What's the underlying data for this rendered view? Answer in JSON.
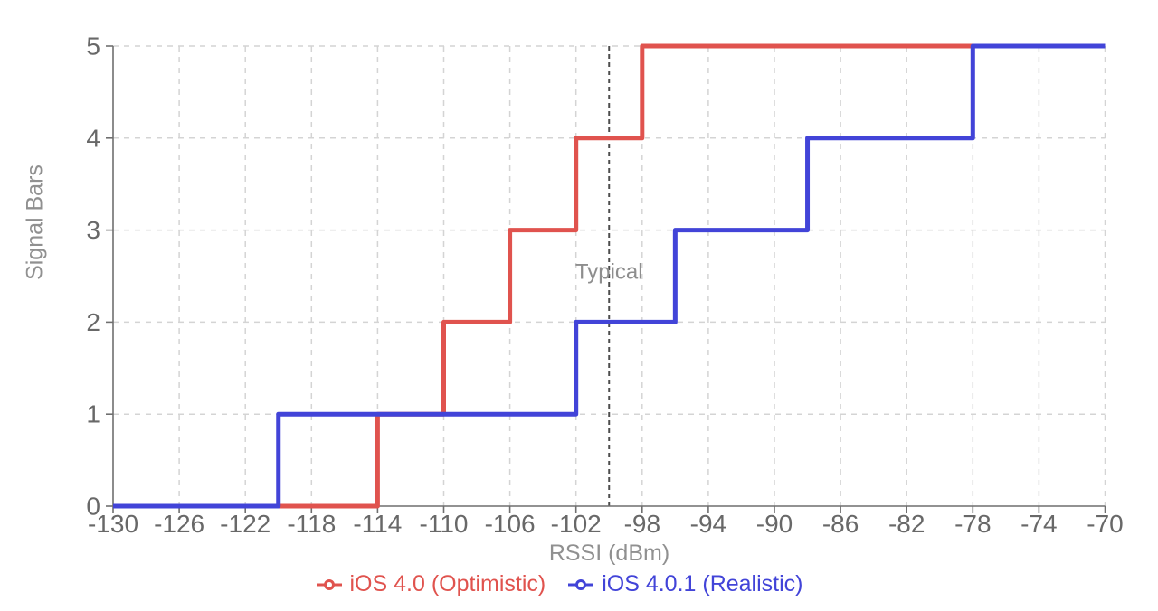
{
  "chart_data": {
    "type": "line",
    "step_mode": "step-after",
    "xlabel": "RSSI (dBm)",
    "ylabel": "Signal Bars",
    "xlim": [
      -130,
      -70
    ],
    "ylim": [
      0,
      5
    ],
    "x_ticks": [
      -130,
      -126,
      -122,
      -118,
      -114,
      -110,
      -106,
      -102,
      -98,
      -94,
      -90,
      -86,
      -82,
      -78,
      -74,
      -70
    ],
    "y_ticks": [
      0,
      1,
      2,
      3,
      4,
      5
    ],
    "grid": true,
    "grid_style": "dashed",
    "legend_position": "bottom",
    "annotation": {
      "label": "Typical",
      "x": -100,
      "label_y": 2.5
    },
    "series": [
      {
        "name": "iOS 4.0 (Optimistic)",
        "color": "#e0534e",
        "points": [
          [
            -130,
            0
          ],
          [
            -114,
            1
          ],
          [
            -110,
            2
          ],
          [
            -106,
            3
          ],
          [
            -102,
            4
          ],
          [
            -98,
            5
          ],
          [
            -70,
            5
          ]
        ]
      },
      {
        "name": "iOS 4.0.1 (Realistic)",
        "color": "#4244d8",
        "points": [
          [
            -130,
            0
          ],
          [
            -120,
            1
          ],
          [
            -102,
            2
          ],
          [
            -96,
            3
          ],
          [
            -88,
            4
          ],
          [
            -78,
            5
          ],
          [
            -70,
            5
          ]
        ]
      }
    ],
    "colors": {
      "grid": "#d4d4d4",
      "axis": "#6f6f6f",
      "tick_label": "#686868",
      "axis_title": "#909090",
      "annotation_line": "#4d4d4d",
      "annotation_text": "#8e8e8e",
      "background": "#ffffff"
    }
  }
}
